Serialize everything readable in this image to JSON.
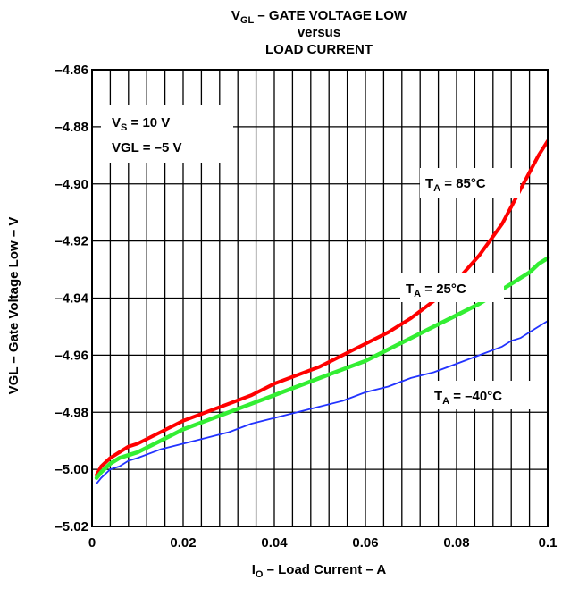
{
  "chart_data": {
    "type": "line",
    "title": {
      "main": "V",
      "main_sub": "GL",
      "main_rest": " – GATE VOLTAGE LOW",
      "line2": "versus",
      "line3": "LOAD CURRENT"
    },
    "xlabel": {
      "main": "I",
      "sub": "O",
      "rest": " – Load Current – A"
    },
    "ylabel": "VGL – Gate Voltage Low – V",
    "xlim": [
      0,
      0.1
    ],
    "ylim": [
      -5.02,
      -4.86
    ],
    "x_ticks": [
      0,
      0.02,
      0.04,
      0.06,
      0.08,
      0.1
    ],
    "x_tick_labels": [
      "0",
      "0.02",
      "0.04",
      "0.06",
      "0.08",
      "0.1"
    ],
    "y_ticks": [
      -5.02,
      -5.0,
      -4.98,
      -4.96,
      -4.94,
      -4.92,
      -4.9,
      -4.88,
      -4.86
    ],
    "y_tick_labels": [
      "-5.02",
      "-5.00",
      "-4.98",
      "-4.96",
      "-4.94",
      "-4.92",
      "-4.90",
      "-4.88",
      "-4.86"
    ],
    "x_minor_gridlines": 25,
    "grid": true,
    "conditions": [
      {
        "pre": "V",
        "sub": "S",
        "post": " = 10 V"
      },
      {
        "pre": "VGL = –5 V",
        "sub": "",
        "post": ""
      }
    ],
    "series": [
      {
        "name": "T_A = 85°C",
        "label_pre": "T",
        "label_sub": "A",
        "label_post": " = 85°C",
        "color": "#ff0000",
        "x": [
          0.001,
          0.002,
          0.004,
          0.006,
          0.008,
          0.01,
          0.015,
          0.02,
          0.025,
          0.03,
          0.035,
          0.04,
          0.045,
          0.05,
          0.055,
          0.06,
          0.065,
          0.07,
          0.075,
          0.08,
          0.085,
          0.09,
          0.092,
          0.094,
          0.096,
          0.098,
          0.1
        ],
        "y": [
          -5.002,
          -4.999,
          -4.996,
          -4.994,
          -4.992,
          -4.991,
          -4.987,
          -4.983,
          -4.98,
          -4.977,
          -4.974,
          -4.97,
          -4.967,
          -4.964,
          -4.96,
          -4.956,
          -4.952,
          -4.947,
          -4.941,
          -4.934,
          -4.925,
          -4.914,
          -4.908,
          -4.902,
          -4.896,
          -4.89,
          -4.885
        ]
      },
      {
        "name": "T_A = 25°C",
        "label_pre": "T",
        "label_sub": "A",
        "label_post": " = 25°C",
        "color": "#33ee33",
        "x": [
          0.001,
          0.002,
          0.004,
          0.006,
          0.008,
          0.01,
          0.015,
          0.02,
          0.025,
          0.03,
          0.035,
          0.04,
          0.045,
          0.05,
          0.055,
          0.06,
          0.065,
          0.07,
          0.075,
          0.08,
          0.085,
          0.09,
          0.092,
          0.094,
          0.096,
          0.098,
          0.1
        ],
        "y": [
          -5.003,
          -5.001,
          -4.998,
          -4.996,
          -4.995,
          -4.994,
          -4.99,
          -4.986,
          -4.983,
          -4.98,
          -4.977,
          -4.974,
          -4.971,
          -4.968,
          -4.965,
          -4.962,
          -4.958,
          -4.954,
          -4.95,
          -4.946,
          -4.942,
          -4.937,
          -4.935,
          -4.933,
          -4.931,
          -4.928,
          -4.926
        ]
      },
      {
        "name": "T_A = -40°C",
        "label_pre": "T",
        "label_sub": "A",
        "label_post": " = –40°C",
        "color": "#2233ff",
        "x": [
          0.001,
          0.002,
          0.004,
          0.006,
          0.008,
          0.01,
          0.015,
          0.02,
          0.025,
          0.03,
          0.035,
          0.04,
          0.045,
          0.05,
          0.055,
          0.06,
          0.065,
          0.07,
          0.075,
          0.08,
          0.085,
          0.09,
          0.092,
          0.094,
          0.096,
          0.098,
          0.1
        ],
        "y": [
          -5.005,
          -5.003,
          -5.0,
          -4.999,
          -4.997,
          -4.996,
          -4.993,
          -4.991,
          -4.989,
          -4.987,
          -4.984,
          -4.982,
          -4.98,
          -4.978,
          -4.976,
          -4.973,
          -4.971,
          -4.968,
          -4.966,
          -4.963,
          -4.96,
          -4.957,
          -4.955,
          -4.954,
          -4.952,
          -4.95,
          -4.948
        ]
      }
    ]
  }
}
